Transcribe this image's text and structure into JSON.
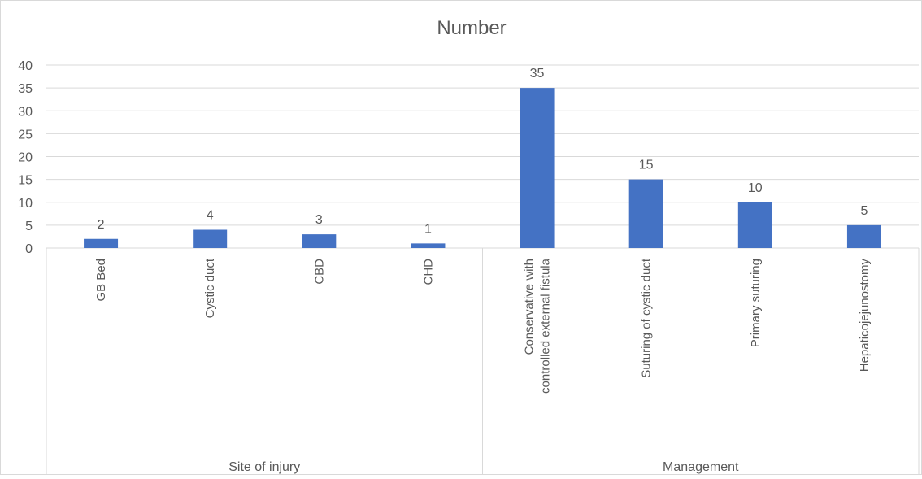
{
  "chart_data": {
    "type": "bar",
    "title": "Number",
    "groups": [
      {
        "label": "Site of injury",
        "categories": [
          "GB Bed",
          "Cystic duct",
          "CBD",
          "CHD"
        ]
      },
      {
        "label": "Management",
        "categories": [
          "Conservative with controlled external fistula",
          "Suturing of cystic duct",
          "Primary suturing",
          "Hepaticojejunostomy"
        ]
      }
    ],
    "categories": [
      "GB Bed",
      "Cystic duct",
      "CBD",
      "CHD",
      "Conservative with controlled external fistula",
      "Suturing of cystic duct",
      "Primary suturing",
      "Hepaticojejunostomy"
    ],
    "category_lines": [
      [
        "GB Bed"
      ],
      [
        "Cystic duct"
      ],
      [
        "CBD"
      ],
      [
        "CHD"
      ],
      [
        "Conservative with",
        "controlled external fistula"
      ],
      [
        "Suturing of cystic duct"
      ],
      [
        "Primary suturing"
      ],
      [
        "Hepaticojejunostomy"
      ]
    ],
    "values": [
      2,
      4,
      3,
      1,
      35,
      15,
      10,
      5
    ],
    "data_labels": [
      "2",
      "4",
      "3",
      "1",
      "35",
      "15",
      "10",
      "5"
    ],
    "ylim": [
      0,
      40
    ],
    "yticks": [
      0,
      5,
      10,
      15,
      20,
      25,
      30,
      35,
      40
    ],
    "ytick_labels": [
      "0",
      "5",
      "10",
      "15",
      "20",
      "25",
      "30",
      "35",
      "40"
    ],
    "grid": true,
    "legend": "none",
    "bar_color": "#4472c4",
    "grid_color": "#d9d9d9",
    "text_color": "#595959"
  }
}
